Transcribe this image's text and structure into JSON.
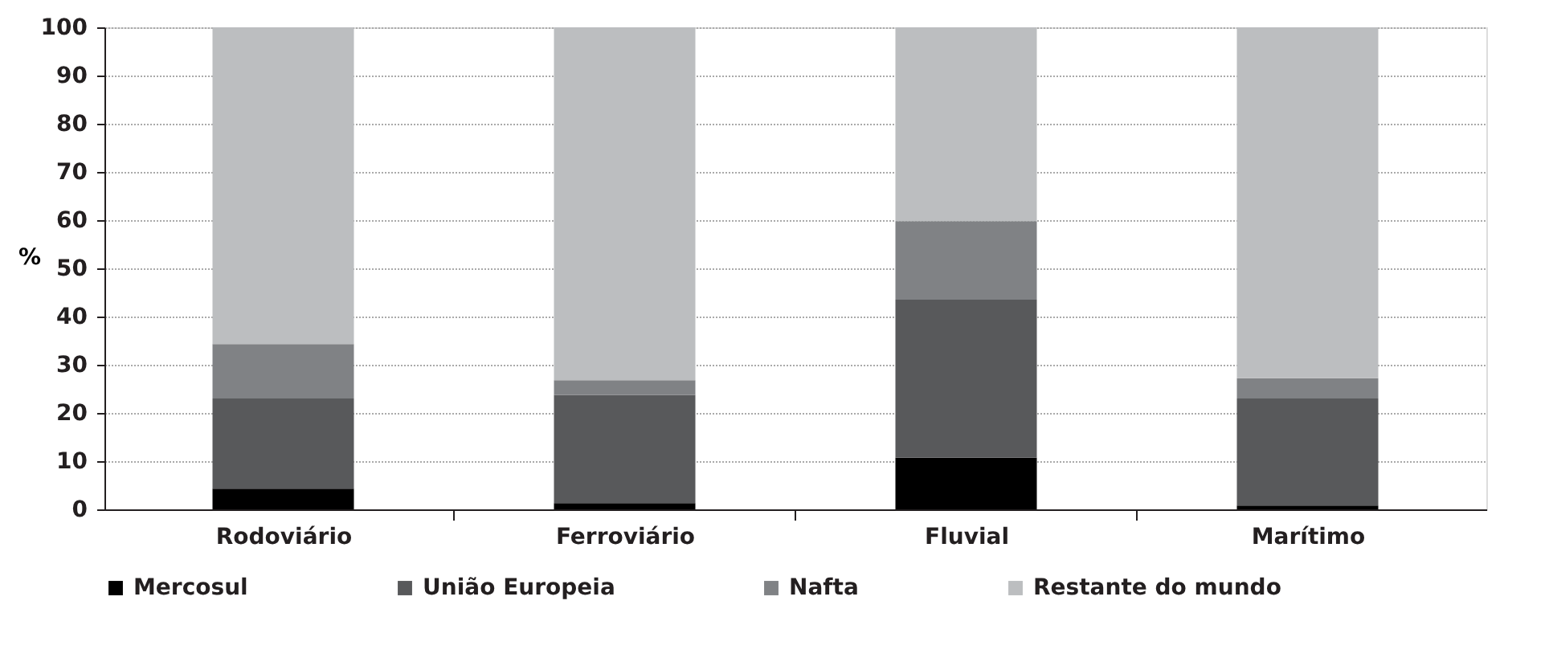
{
  "chart_data": {
    "type": "bar",
    "stacked": true,
    "ylabel": "%",
    "categories": [
      "Rodoviário",
      "Ferroviário",
      "Fluvial",
      "Marítimo"
    ],
    "series": [
      {
        "name": "Mercosul",
        "color": "#000000",
        "values": [
          4.3,
          1.3,
          10.7,
          0.8
        ]
      },
      {
        "name": "União Europeia",
        "color": "#58595b",
        "values": [
          18.7,
          22.4,
          32.8,
          22.2
        ]
      },
      {
        "name": "Nafta",
        "color": "#808285",
        "values": [
          11.3,
          3.1,
          16.3,
          4.2
        ]
      },
      {
        "name": "Restante do mundo",
        "color": "#bcbec0",
        "values": [
          65.7,
          73.2,
          40.2,
          72.8
        ]
      }
    ],
    "ylim": [
      0,
      100
    ],
    "yticks": [
      0,
      10,
      20,
      30,
      40,
      50,
      60,
      70,
      80,
      90,
      100
    ],
    "grid": "y",
    "legend": "bottom"
  }
}
